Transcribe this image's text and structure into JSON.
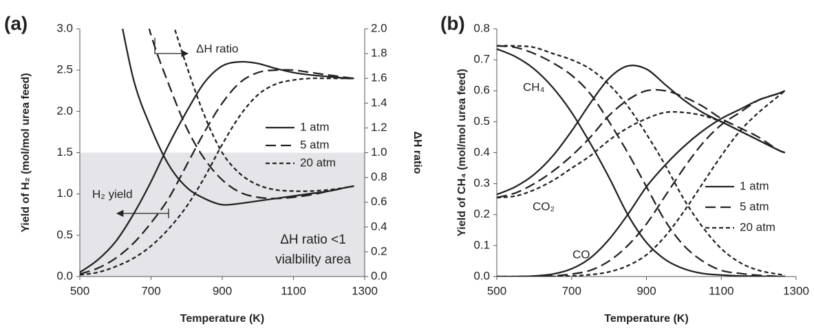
{
  "chart_data": [
    {
      "type": "line",
      "title": "(a)",
      "xlabel": "Temperature (K)",
      "ylabel": "Yield of H₂ (mol/mol urea feed)",
      "y2label": "ΔH ratio",
      "x": [
        500,
        550,
        600,
        650,
        700,
        750,
        800,
        850,
        900,
        950,
        1000,
        1050,
        1100,
        1150,
        1200,
        1250,
        1270
      ],
      "xlim": [
        500,
        1300
      ],
      "xticks": [
        500,
        700,
        900,
        1100,
        1300
      ],
      "ylim": [
        0,
        3
      ],
      "yticks": [
        {
          "value": 0,
          "label": "0.0"
        },
        {
          "value": 0.5,
          "label": "0.5"
        },
        {
          "value": 1,
          "label": "1.0"
        },
        {
          "value": 1.5,
          "label": "1.5"
        },
        {
          "value": 2,
          "label": "2.0"
        },
        {
          "value": 2.5,
          "label": "2.5"
        },
        {
          "value": 3,
          "label": "3.0"
        }
      ],
      "y2lim": [
        0,
        2
      ],
      "y2ticks": [
        {
          "value": 0,
          "label": "0.0"
        },
        {
          "value": 0.2,
          "label": "0.2"
        },
        {
          "value": 0.4,
          "label": "0.4"
        },
        {
          "value": 0.6,
          "label": "0.6"
        },
        {
          "value": 0.8,
          "label": "0.8"
        },
        {
          "value": 1,
          "label": "1.0"
        },
        {
          "value": 1.2,
          "label": "1.2"
        },
        {
          "value": 1.4,
          "label": "1.4"
        },
        {
          "value": 1.6,
          "label": "1.6"
        },
        {
          "value": 1.8,
          "label": "1.8"
        },
        {
          "value": 2,
          "label": "2.0"
        }
      ],
      "shade": {
        "axis": "y2",
        "range": [
          0,
          1
        ],
        "color": "#e4e4e9"
      },
      "curve_labels": [
        "H₂ yield",
        "ΔH ratio"
      ],
      "curve_axes": [
        "y",
        "y2"
      ],
      "annotations": [
        "ΔH ratio <1",
        "vialbility area"
      ],
      "color": "#222222",
      "series": [
        {
          "name": "1 atm",
          "dash": "solid",
          "curves": [
            [
              0.05,
              0.2,
              0.42,
              0.75,
              1.15,
              1.6,
              2.0,
              2.35,
              2.55,
              2.6,
              2.58,
              2.52,
              2.47,
              2.44,
              2.42,
              2.4,
              2.4
            ],
            [
              null,
              null,
              2.3,
              1.6,
              1.2,
              0.9,
              0.72,
              0.63,
              0.58,
              0.59,
              0.61,
              0.63,
              0.65,
              0.67,
              0.69,
              0.72,
              0.73
            ]
          ]
        },
        {
          "name": "5 atm",
          "dash": "long",
          "curves": [
            [
              0.03,
              0.1,
              0.22,
              0.4,
              0.65,
              0.95,
              1.35,
              1.75,
              2.1,
              2.35,
              2.47,
              2.5,
              2.5,
              2.47,
              2.44,
              2.41,
              2.4
            ],
            [
              null,
              null,
              null,
              2.5,
              1.95,
              1.55,
              1.2,
              0.95,
              0.78,
              0.68,
              0.64,
              0.63,
              0.64,
              0.66,
              0.69,
              0.72,
              0.73
            ]
          ]
        },
        {
          "name": "20 atm",
          "dash": "short",
          "curves": [
            [
              0.02,
              0.05,
              0.12,
              0.22,
              0.37,
              0.58,
              0.85,
              1.2,
              1.6,
              1.95,
              2.2,
              2.33,
              2.38,
              2.4,
              2.4,
              2.4,
              2.4
            ],
            [
              null,
              null,
              null,
              null,
              null,
              2.15,
              1.7,
              1.3,
              1.0,
              0.83,
              0.74,
              0.7,
              0.69,
              0.69,
              0.7,
              0.72,
              0.73
            ]
          ]
        }
      ]
    },
    {
      "type": "line",
      "title": "(b)",
      "xlabel": "Temperature (K)",
      "ylabel": "Yield of CH₄ (mol/mol urea feed)",
      "x": [
        500,
        550,
        600,
        650,
        700,
        750,
        800,
        850,
        900,
        950,
        1000,
        1050,
        1100,
        1150,
        1200,
        1250,
        1270
      ],
      "xlim": [
        500,
        1300
      ],
      "xticks": [
        500,
        700,
        900,
        1100,
        1300
      ],
      "ylim": [
        0,
        0.8
      ],
      "yticks": [
        {
          "value": 0,
          "label": "0.0"
        },
        {
          "value": 0.1,
          "label": "0.1"
        },
        {
          "value": 0.2,
          "label": "0.2"
        },
        {
          "value": 0.3,
          "label": "0.3"
        },
        {
          "value": 0.4,
          "label": "0.4"
        },
        {
          "value": 0.5,
          "label": "0.5"
        },
        {
          "value": 0.6,
          "label": "0.6"
        },
        {
          "value": 0.7,
          "label": "0.7"
        },
        {
          "value": 0.8,
          "label": "0.8"
        }
      ],
      "curve_labels": [
        "CH₄",
        "CO₂",
        "CO"
      ],
      "curve_axes": [
        "y",
        "y",
        "y"
      ],
      "color": "#222222",
      "series": [
        {
          "name": "1 atm",
          "dash": "solid",
          "curves": [
            [
              0.735,
              0.71,
              0.67,
              0.61,
              0.53,
              0.43,
              0.32,
              0.2,
              0.11,
              0.055,
              0.025,
              0.01,
              0.005,
              0.002,
              0.001,
              0,
              0
            ],
            [
              0.265,
              0.29,
              0.33,
              0.39,
              0.47,
              0.56,
              0.64,
              0.68,
              0.67,
              0.62,
              0.57,
              0.53,
              0.5,
              0.47,
              0.44,
              0.41,
              0.4
            ],
            [
              0,
              0,
              0.002,
              0.008,
              0.025,
              0.06,
              0.12,
              0.2,
              0.29,
              0.36,
              0.42,
              0.47,
              0.51,
              0.54,
              0.57,
              0.59,
              0.6
            ]
          ]
        },
        {
          "name": "5 atm",
          "dash": "long",
          "curves": [
            [
              0.745,
              0.74,
              0.72,
              0.69,
              0.65,
              0.59,
              0.5,
              0.4,
              0.29,
              0.18,
              0.1,
              0.05,
              0.02,
              0.01,
              0.004,
              0.001,
              0
            ],
            [
              0.255,
              0.27,
              0.3,
              0.34,
              0.39,
              0.45,
              0.52,
              0.57,
              0.6,
              0.6,
              0.58,
              0.55,
              0.51,
              0.48,
              0.45,
              0.41,
              0.4
            ],
            [
              0,
              0,
              0,
              0.002,
              0.008,
              0.02,
              0.05,
              0.1,
              0.17,
              0.26,
              0.35,
              0.43,
              0.49,
              0.53,
              0.57,
              0.59,
              0.6
            ]
          ]
        },
        {
          "name": "20 atm",
          "dash": "short",
          "curves": [
            [
              0.745,
              0.745,
              0.74,
              0.72,
              0.7,
              0.67,
              0.62,
              0.55,
              0.46,
              0.36,
              0.25,
              0.16,
              0.09,
              0.045,
              0.02,
              0.008,
              0.005
            ],
            [
              0.255,
              0.26,
              0.28,
              0.31,
              0.35,
              0.39,
              0.44,
              0.48,
              0.51,
              0.53,
              0.53,
              0.52,
              0.5,
              0.47,
              0.44,
              0.41,
              0.4
            ],
            [
              0,
              0,
              0,
              0,
              0.002,
              0.006,
              0.015,
              0.035,
              0.07,
              0.13,
              0.21,
              0.3,
              0.39,
              0.47,
              0.53,
              0.58,
              0.6
            ]
          ]
        }
      ]
    }
  ]
}
